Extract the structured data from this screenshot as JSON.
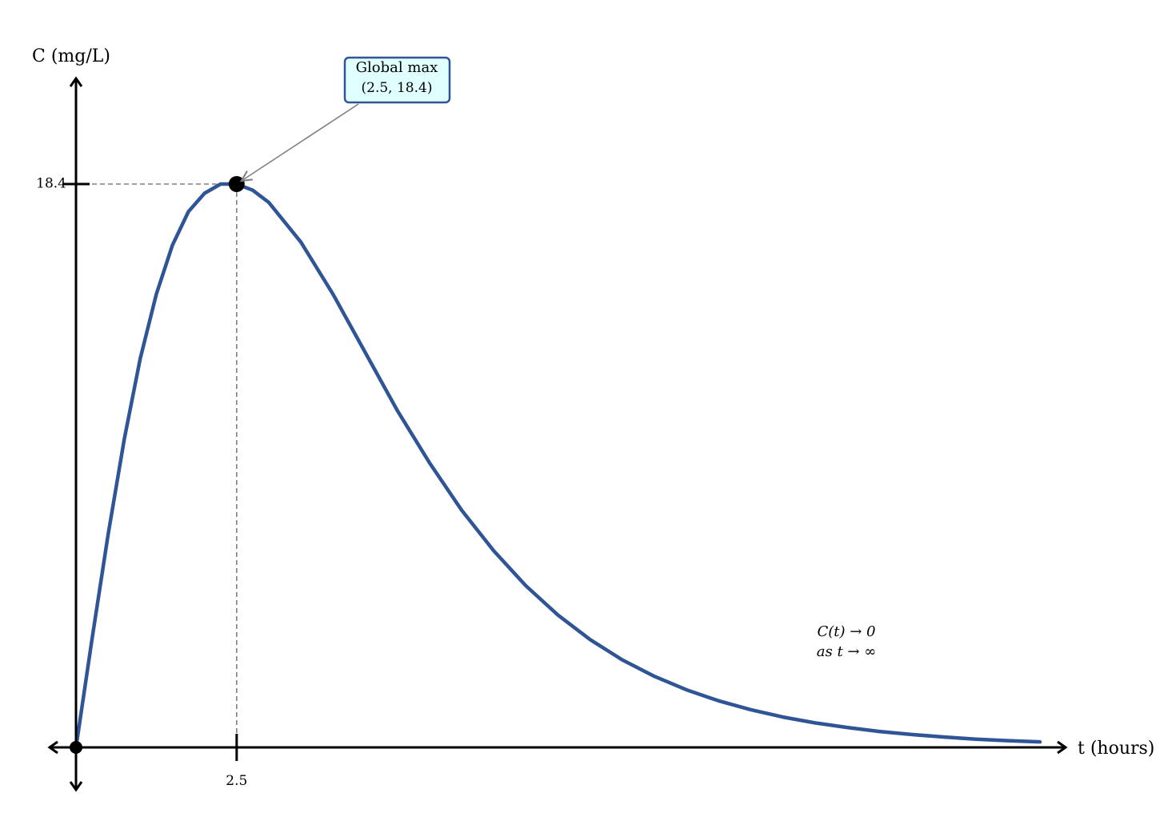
{
  "chart_data": {
    "type": "line",
    "title": "",
    "xlabel": "t (hours)",
    "ylabel": "C (mg/L)",
    "xlim": [
      0,
      15
    ],
    "ylim": [
      0,
      18.4
    ],
    "grid": false,
    "series": [
      {
        "color": "#2f5597",
        "x": [
          0,
          0.25,
          0.5,
          0.75,
          1,
          1.25,
          1.5,
          1.75,
          2,
          2.25,
          2.5,
          2.75,
          3,
          3.5,
          4,
          4.5,
          5,
          5.5,
          6,
          6.5,
          7,
          7.5,
          8,
          8.5,
          9,
          9.5,
          10,
          10.5,
          11,
          11.5,
          12,
          12.5,
          13,
          13.5,
          14,
          14.5,
          15
        ],
        "y": [
          0,
          3.55,
          6.96,
          10.06,
          12.7,
          14.8,
          16.4,
          17.5,
          18.1,
          18.4,
          18.4,
          18.2,
          17.8,
          16.5,
          14.8,
          12.9,
          11.0,
          9.3,
          7.75,
          6.42,
          5.28,
          4.32,
          3.52,
          2.86,
          2.32,
          1.88,
          1.52,
          1.23,
          0.99,
          0.8,
          0.65,
          0.52,
          0.42,
          0.34,
          0.27,
          0.22,
          0.18
        ]
      }
    ],
    "ticks": {
      "x": [
        "2.5"
      ],
      "y": [
        "18.4"
      ]
    },
    "points": [
      {
        "x": 0,
        "y": 0
      },
      {
        "x": 2.5,
        "y": 18.4
      }
    ],
    "annotations": {
      "max_title": "Global max",
      "max_coords": "(2.5, 18.4)",
      "limit_line1": "C(t) → 0",
      "limit_line2": "as t → ∞"
    },
    "colors": {
      "curve": "#2f5597",
      "callout_fill": "#e0ffff",
      "callout_border": "#2f5597",
      "guide": "#808080"
    }
  }
}
